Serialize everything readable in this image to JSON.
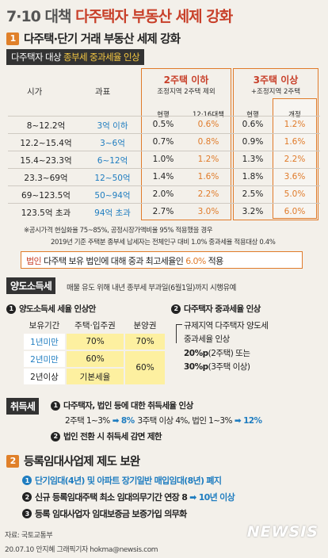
{
  "title": {
    "part1": "7·10 대책",
    "part2": "다주택자 부동산 세제 강화"
  },
  "section1": {
    "num": "1",
    "heading": "다주택·단기 거래 부동산 세제 강화",
    "label_prefix": "다주택자 대상",
    "label_highlight": "종부세 중과세율 인상",
    "headers": {
      "col_value": "시가",
      "col_base": "과표",
      "group1_title": "2주택 이하",
      "group1_sub": "조정지역 2주택 제외",
      "group2_title": "3주택 이상",
      "group2_sub": "+조정지역 2주택",
      "sub_current1": "현행",
      "sub_plan1": "12·16대책",
      "sub_current2": "현행",
      "sub_revised2": "개정"
    },
    "rows": [
      {
        "value": "8~12.2억",
        "base": "3억 이하",
        "c1": "0.5%",
        "p1": "0.6%",
        "c2": "0.6%",
        "r2": "1.2%"
      },
      {
        "value": "12.2~15.4억",
        "base": "3~6억",
        "c1": "0.7%",
        "p1": "0.8%",
        "c2": "0.9%",
        "r2": "1.6%"
      },
      {
        "value": "15.4~23.3억",
        "base": "6~12억",
        "c1": "1.0%",
        "p1": "1.2%",
        "c2": "1.3%",
        "r2": "2.2%"
      },
      {
        "value": "23.3~69억",
        "base": "12~50억",
        "c1": "1.4%",
        "p1": "1.6%",
        "c2": "1.8%",
        "r2": "3.6%"
      },
      {
        "value": "69~123.5억",
        "base": "50~94억",
        "c1": "2.0%",
        "p1": "2.2%",
        "c2": "2.5%",
        "r2": "5.0%"
      },
      {
        "value": "123.5억 초과",
        "base": "94억 초과",
        "c1": "2.7%",
        "p1": "3.0%",
        "c2": "3.2%",
        "r2": "6.0%"
      }
    ],
    "note1": "※공시가격 현실화율 75~85%, 공정시장가액비율 95% 적용했을 경우",
    "note2": "2019년 기준 주택분 종부세 납세자는 전체인구 대비 1.0% 중과세율 적용대상 0.4%",
    "corp": {
      "tag": "법인",
      "text": "다주택 보유 법인에 대해 중과 최고세율인",
      "rate": "6.0%",
      "suffix": "적용"
    }
  },
  "transfer": {
    "tag": "양도소득세",
    "desc": "매물 유도 위해 내년 종부세 부과일(6월1일)까지 시행유예",
    "item1_num": "1",
    "item1_title": "양도소득세 세율 인상안",
    "item2_num": "2",
    "item2_title": "다주택자 중과세율 인상",
    "table": {
      "h_period": "보유기간",
      "h_house": "주택·입주권",
      "h_presale": "분양권",
      "r1_period": "1년미만",
      "r1_house": "70%",
      "r1_presale": "70%",
      "r2_period": "2년미만",
      "r2_house": "60%",
      "r23_presale": "60%",
      "r3_period": "2년이상",
      "r3_house": "기본세율"
    },
    "reg": {
      "line1": "규제지역 다주택자 양도세",
      "line2": "중과세율 인상",
      "line3_bold": "20%p",
      "line3_rest": "(2주택) 또는",
      "line4_bold": "30%p",
      "line4_rest": "(3주택 이상)"
    }
  },
  "acquisition": {
    "tag": "취득세",
    "item1_num": "1",
    "item1": "다주택자, 법인 등에 대한 취득세율 인상",
    "line2a": "2주택 1~3%",
    "line2b": "8%",
    "line2c": "3주택 이상 4%, 법인 1~3%",
    "line2d": "12%",
    "item2_num": "2",
    "item2": "법인 전환 시 취득세 감면 제한",
    "arrow": "➡"
  },
  "section2": {
    "num": "2",
    "heading": "등록임대사업제 제도 보완",
    "item1_num": "1",
    "item1": "단기임대(4년) 및 아파트 장기일반 매입임대(8년) 폐지",
    "item2_num": "2",
    "item2a": "신규 등록임대주택 최소 임대의무기간 연장 8",
    "item2b": "10년 이상",
    "item3_num": "3",
    "item3": "등록 임대사업자 임대보증금 보증가입 의무화"
  },
  "footer": {
    "source": "자료: 국토교통부",
    "credit": "20.07.10 안지혜 그래픽기자 hokma@newsis.com",
    "logo": "NEWSIS"
  },
  "colors": {
    "accent": "#e07b2a",
    "red": "#c8402a",
    "blue": "#1f7dc0",
    "yellow": "#fdf0a0"
  }
}
